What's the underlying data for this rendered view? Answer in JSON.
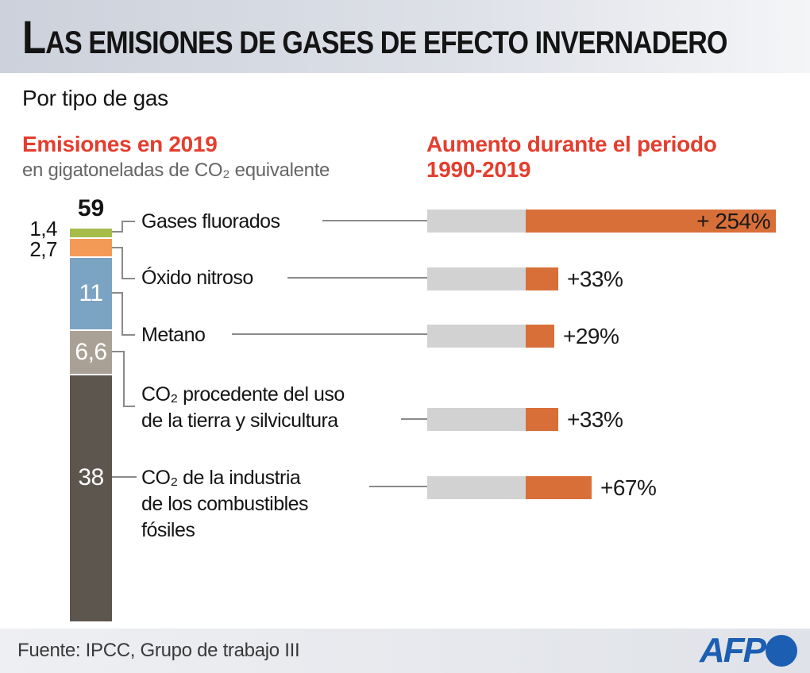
{
  "header": {
    "title": "LAS EMISIONES DE GASES DE EFECTO INVERNADERO"
  },
  "subtitle": "Por tipo de gas",
  "left_panel": {
    "heading": "Emisiones en 2019",
    "subheading": "en gigatoneladas de CO₂ equivalente"
  },
  "right_panel": {
    "heading_line1": "Aumento durante el periodo",
    "heading_line2": "1990-2019"
  },
  "row_labels": [
    {
      "lines": [
        "Gases fluorados"
      ]
    },
    {
      "lines": [
        "Óxido nitroso"
      ]
    },
    {
      "lines": [
        "Metano"
      ]
    },
    {
      "lines": [
        "CO₂ procedente del uso",
        "de la tierra y silvicultura"
      ]
    },
    {
      "lines": [
        "CO₂ de la industria",
        "de los combustibles",
        "fósiles"
      ]
    }
  ],
  "footer": {
    "source": "Fuente: IPCC, Grupo de trabajo III",
    "logo": "AFP"
  },
  "colors": {
    "accent_red": "#e53d2e",
    "orange_increase": "#d96f38",
    "baseline_gray": "#d2d2d2",
    "logo_blue": "#1b5eb2",
    "header_band_left": "#ccd1db",
    "header_band_right": "#f4f5f7"
  },
  "chart_data": [
    {
      "type": "bar",
      "subtype": "stacked-vertical-single",
      "title": "Emisiones en 2019",
      "unit": "gigatoneladas de CO₂ equivalente",
      "total": 59,
      "total_display": "59",
      "segments": [
        {
          "label": "Gases fluorados",
          "value": 1.4,
          "display": "1,4",
          "color": "#a6bd4a",
          "value_label_position": "left"
        },
        {
          "label": "Óxido nitroso",
          "value": 2.7,
          "display": "2,7",
          "color": "#f49a57",
          "value_label_position": "left"
        },
        {
          "label": "Metano",
          "value": 11,
          "display": "11",
          "color": "#7ba3c2",
          "value_label_position": "inside"
        },
        {
          "label": "CO₂ procedente del uso de la tierra y silvicultura",
          "value": 6.6,
          "display": "6,6",
          "color": "#aaa196",
          "value_label_position": "inside"
        },
        {
          "label": "CO₂ de la industria de los combustibles fósiles",
          "value": 38,
          "display": "38",
          "color": "#5d564f",
          "value_label_position": "inside"
        }
      ]
    },
    {
      "type": "bar",
      "subtype": "horizontal-increase",
      "title": "Aumento durante el periodo 1990-2019",
      "baseline_pct": 100,
      "rows": [
        {
          "label": "Gases fluorados",
          "increase_pct": 254,
          "display": "+ 254%",
          "label_inside_bar": true
        },
        {
          "label": "Óxido nitroso",
          "increase_pct": 33,
          "display": "+33%",
          "label_inside_bar": false
        },
        {
          "label": "Metano",
          "increase_pct": 29,
          "display": "+29%",
          "label_inside_bar": false
        },
        {
          "label": "CO₂ procedente del uso de la tierra y silvicultura",
          "increase_pct": 33,
          "display": "+33%",
          "label_inside_bar": false
        },
        {
          "label": "CO₂ de la industria de los combustibles fósiles",
          "increase_pct": 67,
          "display": "+67%",
          "label_inside_bar": false
        }
      ]
    }
  ]
}
